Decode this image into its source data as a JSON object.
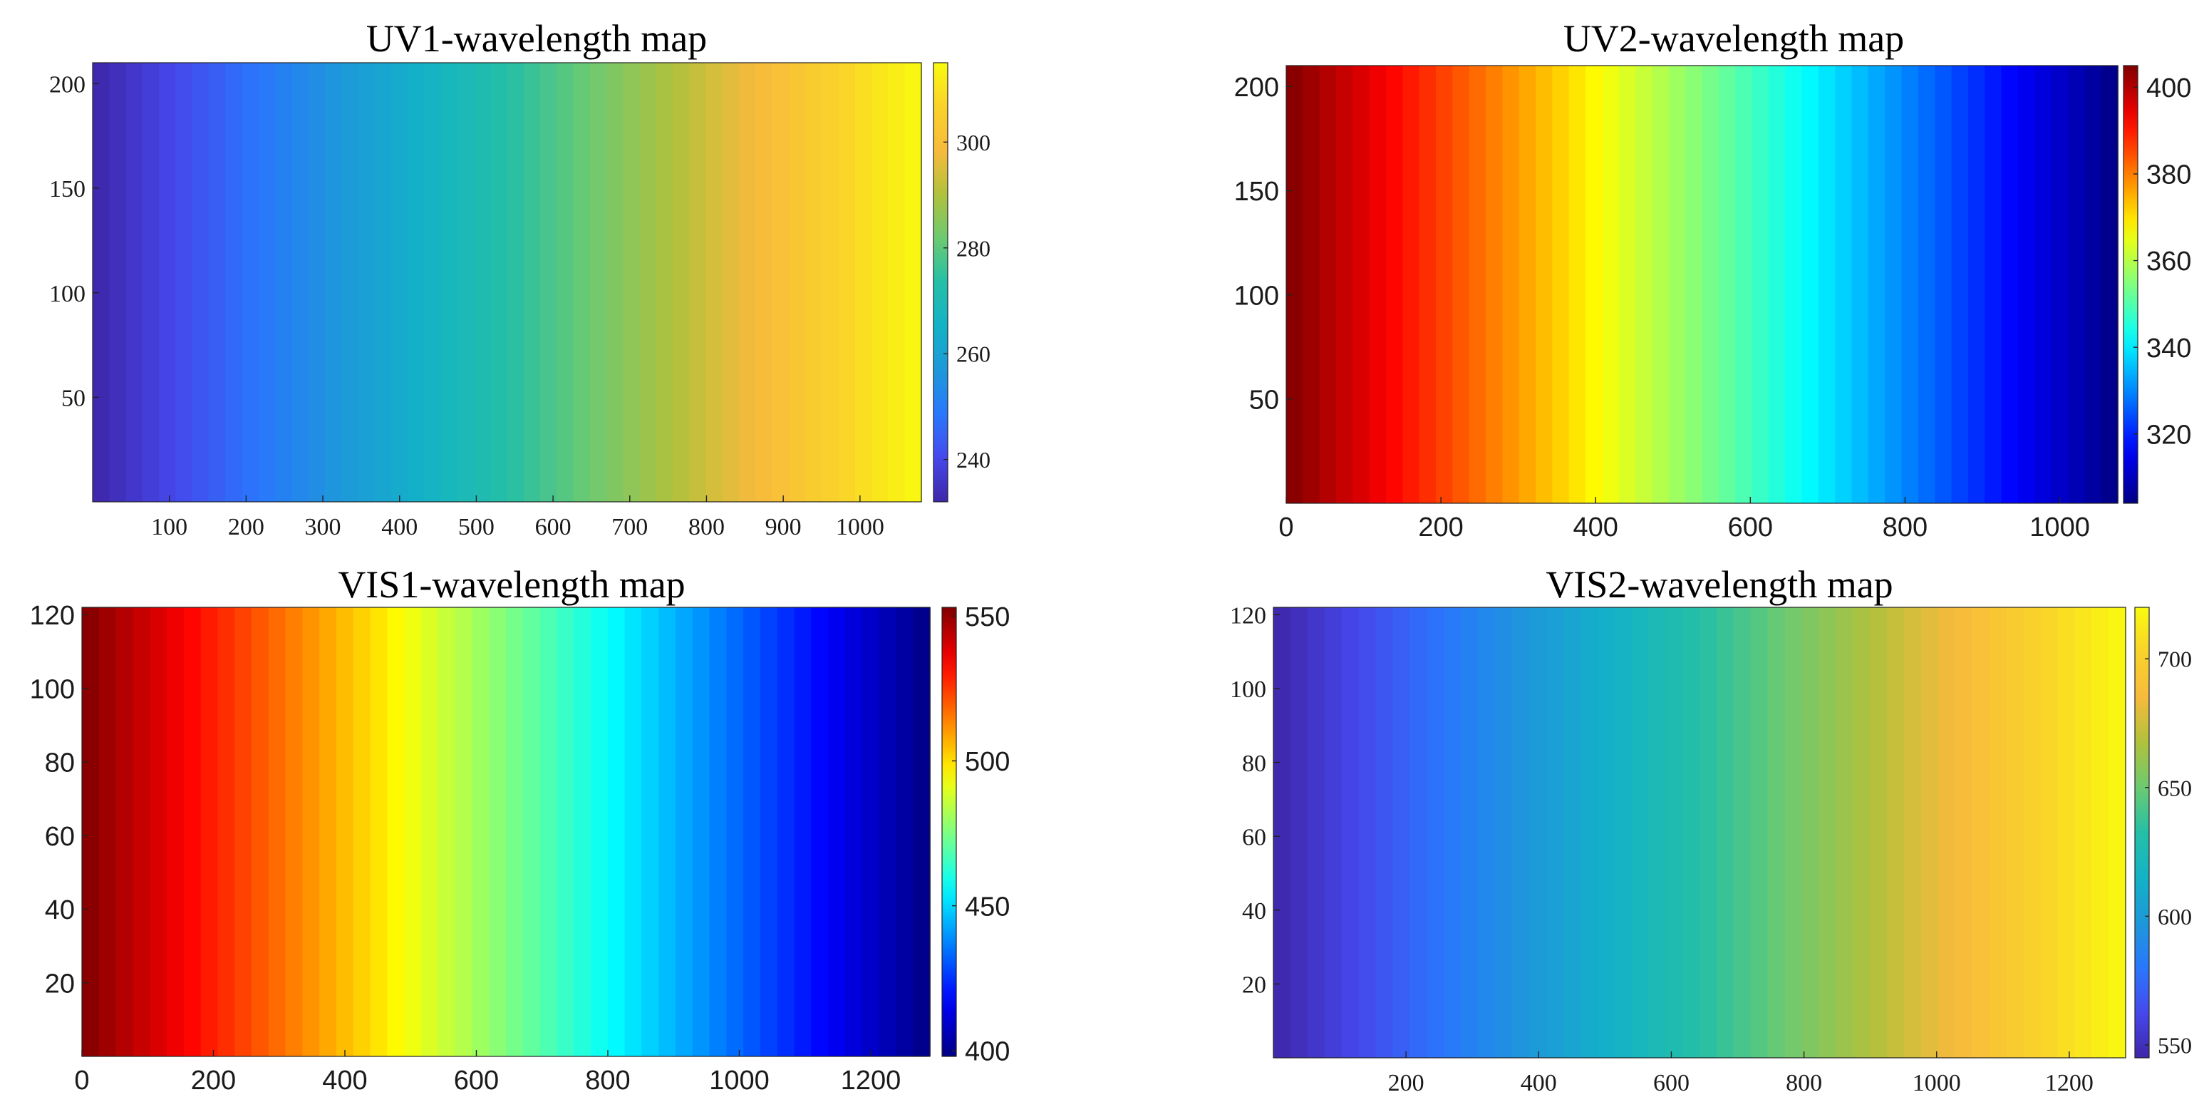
{
  "chart_data": [
    {
      "type": "heatmap",
      "title": "UV1-wavelength map",
      "font": "serif",
      "colormap": "parula",
      "xlim": [
        0,
        1080
      ],
      "ylim": [
        0,
        210
      ],
      "x_ticks": [
        100,
        200,
        300,
        400,
        500,
        600,
        700,
        800,
        900,
        1000
      ],
      "y_ticks": [
        50,
        100,
        150,
        200
      ],
      "value_range": [
        232,
        315
      ],
      "value_start": 232,
      "value_end": 315,
      "colorbar_ticks": [
        240,
        260,
        280,
        300
      ],
      "bands": 50
    },
    {
      "type": "heatmap",
      "title": "UV2-wavelength map",
      "font": "sans",
      "colormap": "jet",
      "xlim": [
        0,
        1075
      ],
      "ylim": [
        0,
        210
      ],
      "x_ticks": [
        0,
        200,
        400,
        600,
        800,
        1000
      ],
      "y_ticks": [
        50,
        100,
        150,
        200
      ],
      "value_range": [
        304,
        405
      ],
      "value_start": 405,
      "value_end": 304,
      "colorbar_ticks": [
        320,
        340,
        360,
        380,
        400
      ],
      "bands": 50
    },
    {
      "type": "heatmap",
      "title": "VIS1-wavelength map",
      "font": "sans",
      "colormap": "jet",
      "xlim": [
        0,
        1290
      ],
      "ylim": [
        0,
        122
      ],
      "x_ticks": [
        0,
        200,
        400,
        600,
        800,
        1000,
        1200
      ],
      "y_ticks": [
        20,
        40,
        60,
        80,
        100,
        120
      ],
      "value_range": [
        398,
        553
      ],
      "value_start": 553,
      "value_end": 398,
      "colorbar_ticks": [
        400,
        450,
        500,
        550
      ],
      "bands": 50
    },
    {
      "type": "heatmap",
      "title": "VIS2-wavelength map",
      "font": "serif",
      "colormap": "parula",
      "xlim": [
        0,
        1285
      ],
      "ylim": [
        0,
        122
      ],
      "x_ticks": [
        200,
        400,
        600,
        800,
        1000,
        1200
      ],
      "y_ticks": [
        20,
        40,
        60,
        80,
        100,
        120
      ],
      "value_range": [
        545,
        720
      ],
      "value_start": 545,
      "value_end": 720,
      "colorbar_ticks": [
        550,
        600,
        650,
        700
      ],
      "bands": 50
    }
  ]
}
